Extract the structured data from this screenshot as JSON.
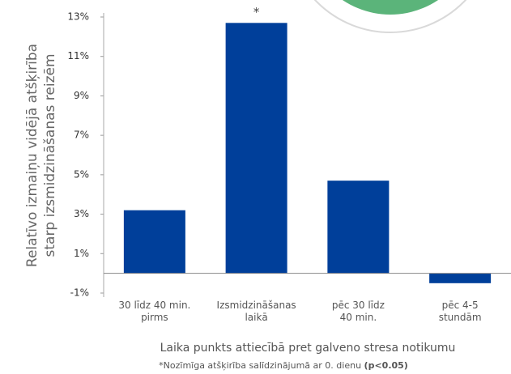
{
  "chart_data": {
    "type": "bar",
    "ylabel": [
      "Relatīvo izmaiņu vidējā atšķirība",
      "starp izsmidzināšanas reizēm"
    ],
    "xlabel": "Laika punkts attiecībā pret galveno stresa notikumu",
    "footnote": [
      "*Nozīmīga atšķirība salīdzinājumā ar 0. dienu",
      "(p<0.05)"
    ],
    "annotation": "*",
    "categories": [
      [
        "30 līdz 40 min.",
        "pirms"
      ],
      [
        "Izsmidzināšanas",
        "laikā"
      ],
      [
        "pēc 30 līdz",
        "40 min."
      ],
      [
        "pēc 4-5",
        "stundām"
      ]
    ],
    "values": [
      3.2,
      12.7,
      4.7,
      -0.5
    ],
    "color": "#003f9a",
    "ylim": [
      -1,
      13
    ],
    "yticks": [
      {
        "value": -1,
        "label": "-1%"
      },
      {
        "value": 1,
        "label": "1%"
      },
      {
        "value": 3,
        "label": "3%"
      },
      {
        "value": 5,
        "label": "5%"
      },
      {
        "value": 7,
        "label": "7%"
      },
      {
        "value": 9,
        "label": "9%"
      },
      {
        "value": 11,
        "label": "11%"
      },
      {
        "value": 13,
        "label": "13%"
      }
    ],
    "grid": false
  }
}
